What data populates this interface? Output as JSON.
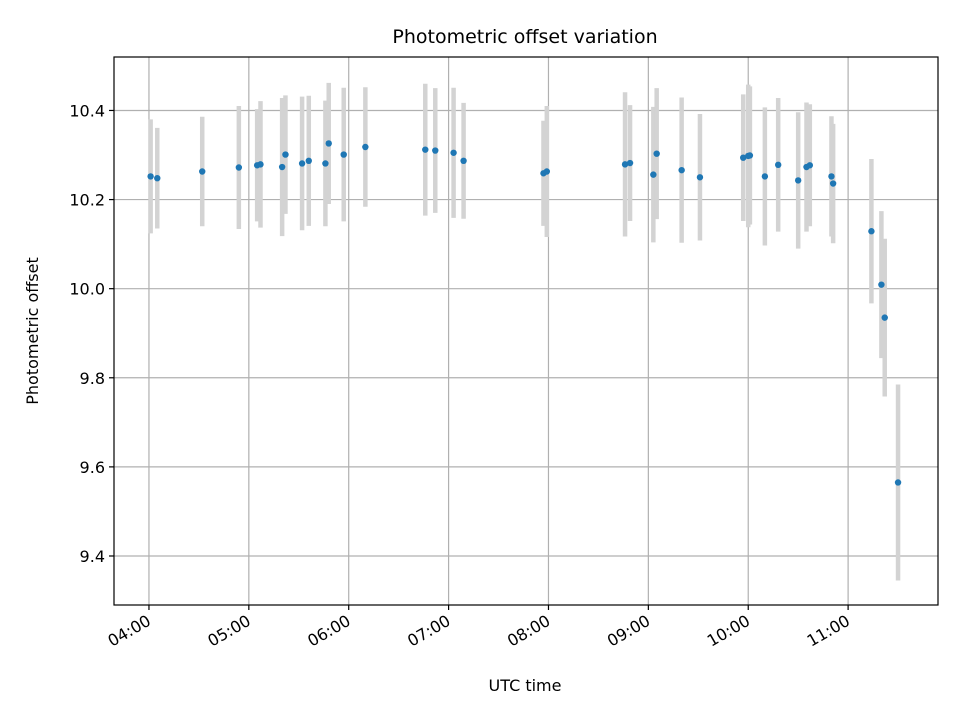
{
  "chart_data": {
    "type": "scatter",
    "title": "Photometric offset variation",
    "xlabel": "UTC time",
    "ylabel": "Photometric offset",
    "x_ticks": [
      "04:00",
      "05:00",
      "06:00",
      "07:00",
      "08:00",
      "09:00",
      "10:00",
      "11:00"
    ],
    "x_tick_times": [
      "04:00",
      "05:00",
      "06:00",
      "07:00",
      "08:00",
      "09:00",
      "10:00",
      "11:00"
    ],
    "y_ticks": [
      9.4,
      9.6,
      9.8,
      10.0,
      10.2,
      10.4
    ],
    "xlim": [
      "03:39",
      "11:54"
    ],
    "ylim": [
      9.29,
      10.52
    ],
    "grid": true,
    "errorbar_color": "#d3d3d3",
    "point_color": "#1f77b4",
    "series": [
      {
        "points": [
          {
            "x": "04:01",
            "y": 10.252,
            "yerr": 0.128
          },
          {
            "x": "04:05",
            "y": 10.248,
            "yerr": 0.113
          },
          {
            "x": "04:32",
            "y": 10.263,
            "yerr": 0.123
          },
          {
            "x": "04:54",
            "y": 10.272,
            "yerr": 0.138
          },
          {
            "x": "05:05",
            "y": 10.277,
            "yerr": 0.126
          },
          {
            "x": "05:07",
            "y": 10.279,
            "yerr": 0.142
          },
          {
            "x": "05:20",
            "y": 10.273,
            "yerr": 0.155
          },
          {
            "x": "05:22",
            "y": 10.301,
            "yerr": 0.133
          },
          {
            "x": "05:32",
            "y": 10.281,
            "yerr": 0.15
          },
          {
            "x": "05:36",
            "y": 10.287,
            "yerr": 0.146
          },
          {
            "x": "05:46",
            "y": 10.281,
            "yerr": 0.141
          },
          {
            "x": "05:48",
            "y": 10.326,
            "yerr": 0.136
          },
          {
            "x": "05:57",
            "y": 10.301,
            "yerr": 0.15
          },
          {
            "x": "06:10",
            "y": 10.318,
            "yerr": 0.134
          },
          {
            "x": "06:46",
            "y": 10.312,
            "yerr": 0.148
          },
          {
            "x": "06:52",
            "y": 10.31,
            "yerr": 0.14
          },
          {
            "x": "07:03",
            "y": 10.305,
            "yerr": 0.146
          },
          {
            "x": "07:09",
            "y": 10.287,
            "yerr": 0.13
          },
          {
            "x": "07:57",
            "y": 10.259,
            "yerr": 0.118
          },
          {
            "x": "07:59",
            "y": 10.263,
            "yerr": 0.147
          },
          {
            "x": "08:46",
            "y": 10.279,
            "yerr": 0.162
          },
          {
            "x": "08:49",
            "y": 10.282,
            "yerr": 0.13
          },
          {
            "x": "09:03",
            "y": 10.256,
            "yerr": 0.152
          },
          {
            "x": "09:05",
            "y": 10.303,
            "yerr": 0.147
          },
          {
            "x": "09:20",
            "y": 10.266,
            "yerr": 0.163
          },
          {
            "x": "09:31",
            "y": 10.25,
            "yerr": 0.142
          },
          {
            "x": "09:57",
            "y": 10.294,
            "yerr": 0.142
          },
          {
            "x": "10:00",
            "y": 10.298,
            "yerr": 0.16
          },
          {
            "x": "10:01",
            "y": 10.299,
            "yerr": 0.155
          },
          {
            "x": "10:10",
            "y": 10.252,
            "yerr": 0.155
          },
          {
            "x": "10:18",
            "y": 10.278,
            "yerr": 0.15
          },
          {
            "x": "10:30",
            "y": 10.243,
            "yerr": 0.153
          },
          {
            "x": "10:35",
            "y": 10.273,
            "yerr": 0.145
          },
          {
            "x": "10:37",
            "y": 10.277,
            "yerr": 0.137
          },
          {
            "x": "10:50",
            "y": 10.252,
            "yerr": 0.135
          },
          {
            "x": "10:51",
            "y": 10.236,
            "yerr": 0.134
          },
          {
            "x": "11:14",
            "y": 10.129,
            "yerr": 0.162
          },
          {
            "x": "11:20",
            "y": 10.009,
            "yerr": 0.165
          },
          {
            "x": "11:22",
            "y": 9.935,
            "yerr": 0.177
          },
          {
            "x": "11:30",
            "y": 9.565,
            "yerr": 0.22
          }
        ]
      }
    ]
  }
}
